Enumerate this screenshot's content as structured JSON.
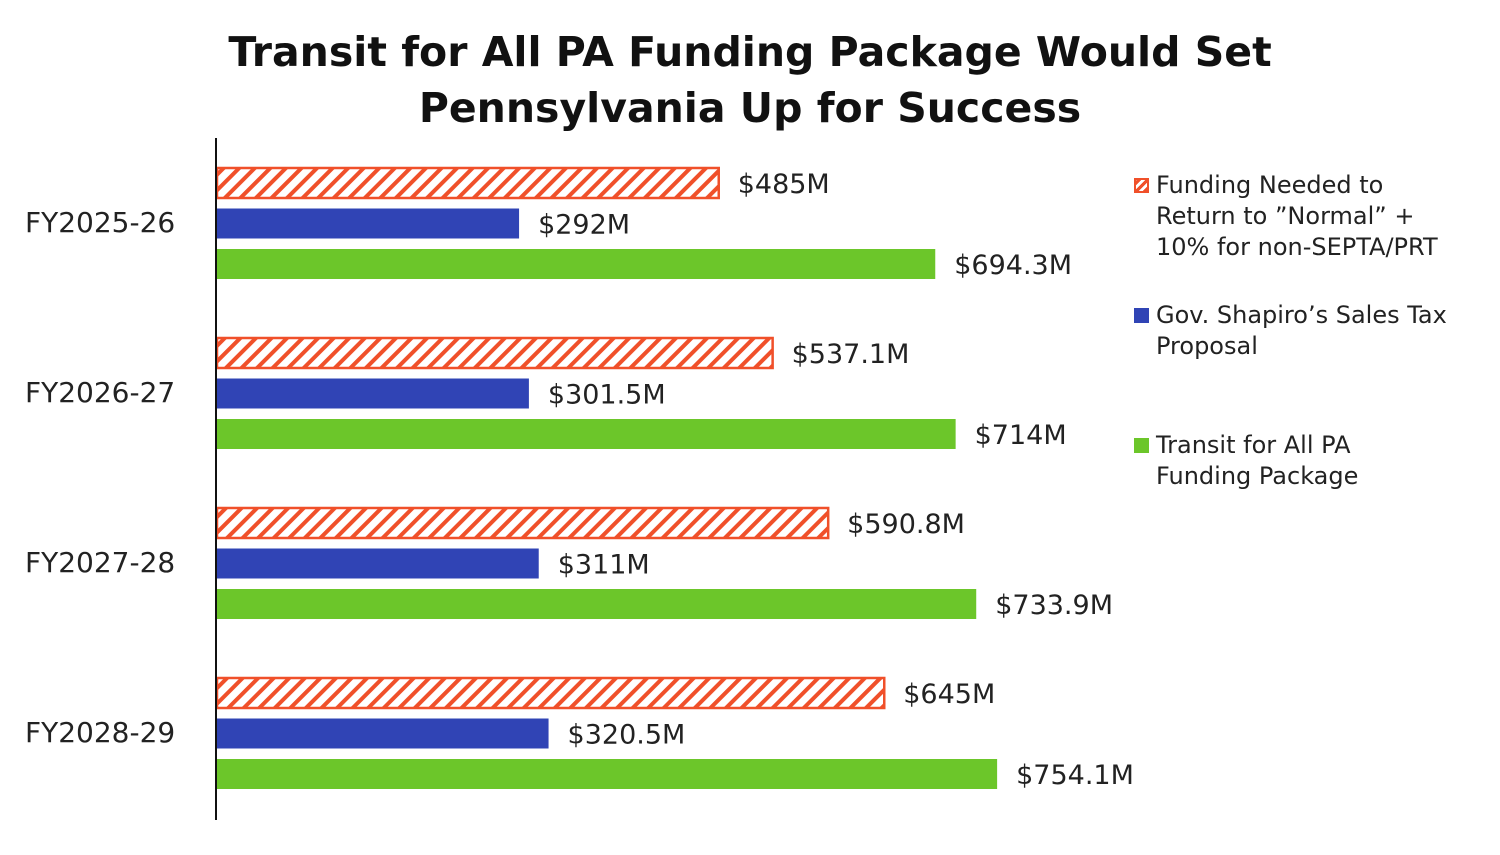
{
  "chart_data": {
    "type": "bar",
    "orientation": "horizontal",
    "title": "Transit for All PA Funding Package Would Set Pennsylvania Up for Success",
    "title_lines": [
      "Transit for All PA Funding Package Would Set",
      "Pennsylvania Up for Success"
    ],
    "categories": [
      "FY2025-26",
      "FY2026-27",
      "FY2027-28",
      "FY2028-29"
    ],
    "series": [
      {
        "name": "Funding Needed to Return to ”Normal” + 10% for non-SEPTA/PRT",
        "legend_lines": [
          "Funding Needed to",
          "Return to ”Normal” +",
          "10% for non-SEPTA/PRT"
        ],
        "values": [
          485,
          537.1,
          590.8,
          645
        ],
        "labels": [
          "$485M",
          "$537.1M",
          "$590.8M",
          "$645M"
        ],
        "color": "#f0502a",
        "pattern": "hatched"
      },
      {
        "name": "Gov. Shapiro’s Sales Tax Proposal",
        "legend_lines": [
          "Gov. Shapiro’s Sales Tax",
          "Proposal"
        ],
        "values": [
          292,
          301.5,
          311,
          320.5
        ],
        "labels": [
          "$292M",
          "$301.5M",
          "$311M",
          "$320.5M"
        ],
        "color": "#3044b5",
        "pattern": "solid"
      },
      {
        "name": "Transit for All PA Funding Package",
        "legend_lines": [
          "Transit for All PA",
          "Funding Package"
        ],
        "values": [
          694.3,
          714,
          733.9,
          754.1
        ],
        "labels": [
          "$694.3M",
          "$714M",
          "$733.9M",
          "$754.1M"
        ],
        "color": "#6cc62a",
        "pattern": "solid"
      }
    ],
    "xlabel": "",
    "ylabel": "",
    "unit": "$M",
    "xlim": [
      0,
      800
    ],
    "grid": false,
    "legend_position": "right"
  }
}
